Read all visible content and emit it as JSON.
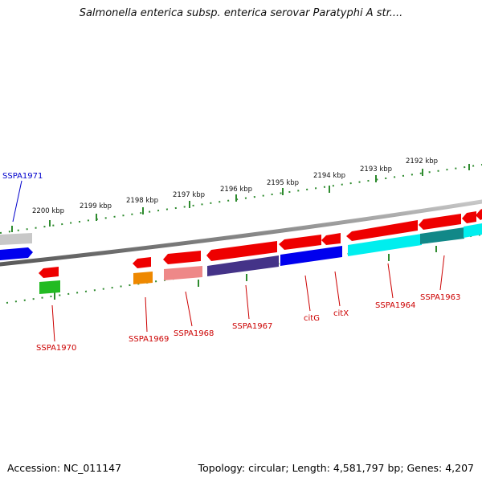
{
  "title": "Salmonella enterica subsp. enterica serovar Paratyphi A str....",
  "footer": {
    "accession": "Accession: NC_011147",
    "summary": "Topology: circular; Length: 4,581,797 bp; Genes: 4,207"
  },
  "colors": {
    "coordinate_ticks": "#2e8b2e",
    "genome_backbone": "#7f7f7f",
    "gene_label_forward": "#0000cc",
    "gene_label_reverse": "#cc0000"
  },
  "scale_labels": [
    "2200 kbp",
    "2199 kbp",
    "2198 kbp",
    "2197 kbp",
    "2196 kbp",
    "2195 kbp",
    "2194 kbp",
    "2193 kbp",
    "2192 kbp"
  ],
  "gene_labels": {
    "forward": [
      "SSPA1971"
    ],
    "reverse": [
      "SSPA1970",
      "SSPA1969",
      "SSPA1968",
      "SSPA1967",
      "citG",
      "citX",
      "SSPA1964",
      "SSPA1963"
    ]
  }
}
